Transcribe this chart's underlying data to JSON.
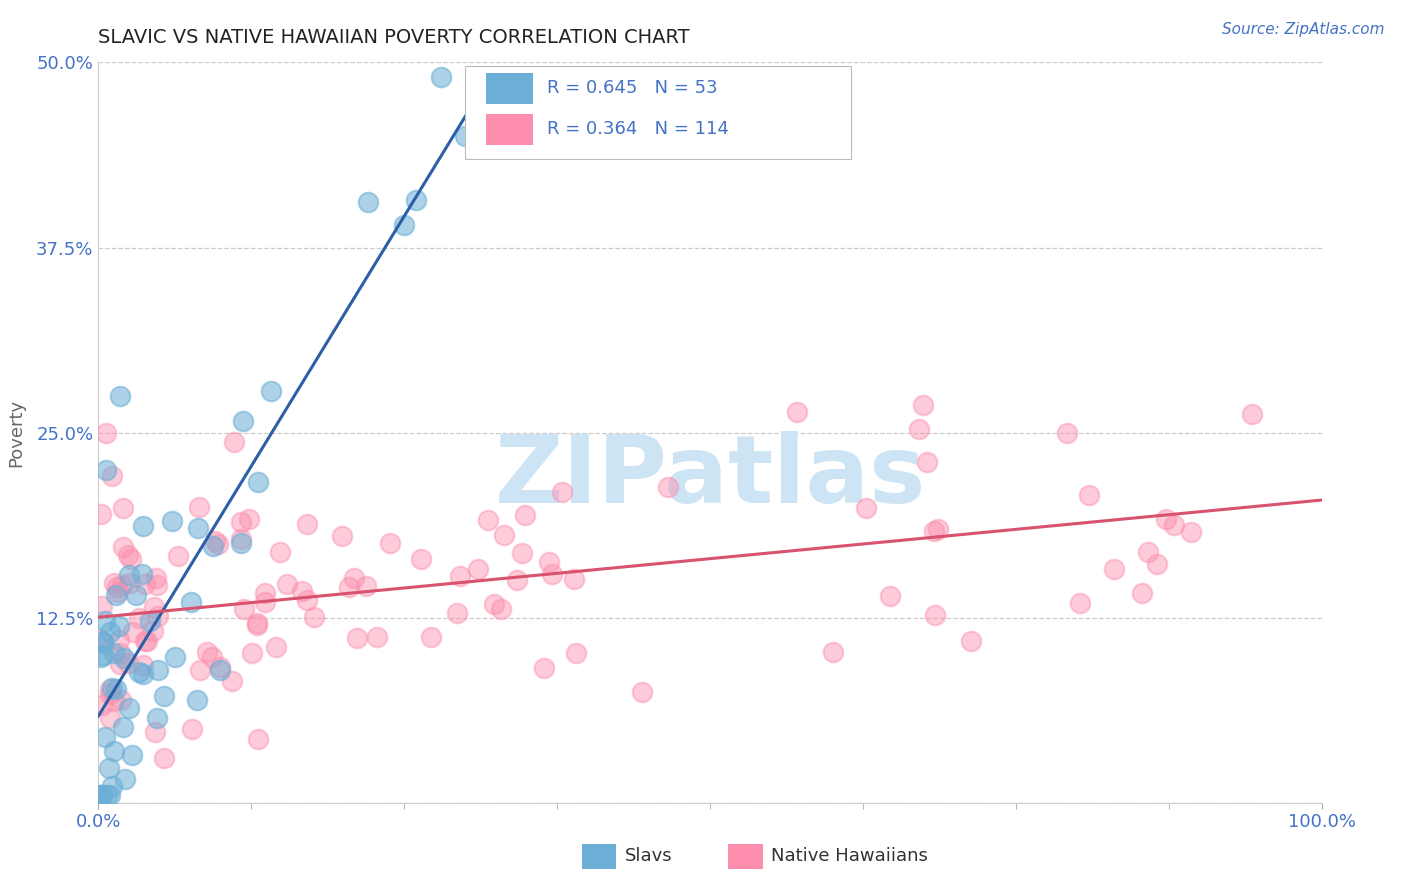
{
  "title": "SLAVIC VS NATIVE HAWAIIAN POVERTY CORRELATION CHART",
  "source": "Source: ZipAtlas.com",
  "ylabel": "Poverty",
  "xlim": [
    0.0,
    100.0
  ],
  "ylim": [
    0.0,
    50.0
  ],
  "yticks": [
    0.0,
    12.5,
    25.0,
    37.5,
    50.0
  ],
  "ytick_labels": [
    "",
    "12.5%",
    "25.0%",
    "37.5%",
    "50.0%"
  ],
  "slavs_color": "#6baed6",
  "native_color": "#fc8dac",
  "slavs_line_color": "#2c5fa8",
  "native_line_color": "#d9536e",
  "R_slavs": 0.645,
  "N_slavs": 53,
  "R_native": 0.364,
  "N_native": 114,
  "slavs_label": "Slavs",
  "native_label": "Native Hawaiians",
  "legend_text_color": "#4472c4",
  "title_color": "#222222",
  "axis_label_color": "#666666",
  "grid_color": "#cccccc",
  "background_color": "#ffffff",
  "watermark_text": "ZIPatlas",
  "watermark_color": "#cde4f5"
}
